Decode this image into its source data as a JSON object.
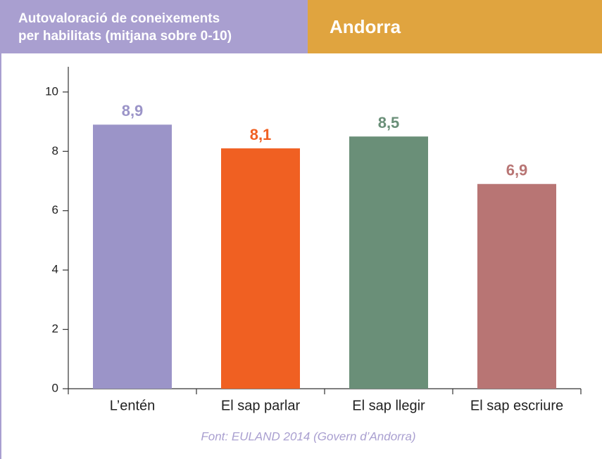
{
  "chart_data": {
    "type": "bar",
    "title": [
      "Autovaloració de coneixements",
      "per habilitats (mitjana sobre 0-10)"
    ],
    "subtitle": "Andorra",
    "source": "Font: EULAND 2014 (Govern d’Andorra)",
    "categories": [
      "L’entén",
      "El sap parlar",
      "El sap llegir",
      "El sap escriure"
    ],
    "values": [
      8.9,
      8.1,
      8.5,
      6.9
    ],
    "value_labels": [
      "8,9",
      "8,1",
      "8,5",
      "6,9"
    ],
    "colors": [
      "#9b94c8",
      "#f06022",
      "#6a8f78",
      "#b87574"
    ],
    "ylim": [
      0,
      10.85
    ],
    "yticks": [
      0,
      2,
      4,
      6,
      8,
      10
    ]
  }
}
